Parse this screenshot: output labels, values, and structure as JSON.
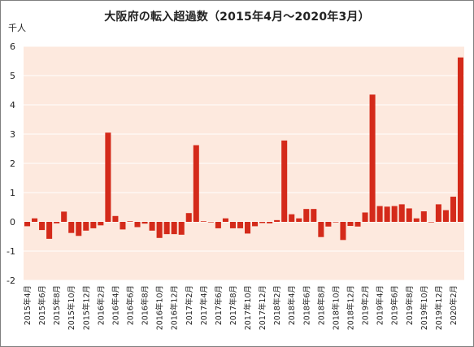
{
  "chart_data": {
    "type": "bar",
    "title": "大阪府の転入超過数（2015年4月～2020年3月）",
    "unit_label": "千人",
    "ylim": [
      -2,
      6
    ],
    "yticks": [
      -2,
      -1,
      0,
      1,
      2,
      3,
      4,
      5,
      6
    ],
    "grid": true,
    "colors": {
      "bar": "#d42a1a",
      "plot_bg": "#fde9de",
      "grid": "#ffffff"
    },
    "categories": [
      "2015年4月",
      "2015年5月",
      "2015年6月",
      "2015年7月",
      "2015年8月",
      "2015年9月",
      "2015年10月",
      "2015年11月",
      "2015年12月",
      "2016年1月",
      "2016年2月",
      "2016年3月",
      "2016年4月",
      "2016年5月",
      "2016年6月",
      "2016年7月",
      "2016年8月",
      "2016年9月",
      "2016年10月",
      "2016年11月",
      "2016年12月",
      "2017年1月",
      "2017年2月",
      "2017年3月",
      "2017年4月",
      "2017年5月",
      "2017年6月",
      "2017年7月",
      "2017年8月",
      "2017年9月",
      "2017年10月",
      "2017年11月",
      "2017年12月",
      "2018年1月",
      "2018年2月",
      "2018年3月",
      "2018年4月",
      "2018年5月",
      "2018年6月",
      "2018年7月",
      "2018年8月",
      "2018年9月",
      "2018年10月",
      "2018年11月",
      "2018年12月",
      "2019年1月",
      "2019年2月",
      "2019年3月",
      "2019年4月",
      "2019年5月",
      "2019年6月",
      "2019年7月",
      "2019年8月",
      "2019年9月",
      "2019年10月",
      "2019年11月",
      "2019年12月",
      "2020年1月",
      "2020年2月",
      "2020年3月"
    ],
    "x_tick_labels": [
      "2015年4月",
      "2015年6月",
      "2015年8月",
      "2015年10月",
      "2015年12月",
      "2016年2月",
      "2016年4月",
      "2016年6月",
      "2016年8月",
      "2016年10月",
      "2016年12月",
      "2017年2月",
      "2017年4月",
      "2017年6月",
      "2017年8月",
      "2017年10月",
      "2017年12月",
      "2018年2月",
      "2018年4月",
      "2018年6月",
      "2018年8月",
      "2018年10月",
      "2018年12月",
      "2019年2月",
      "2019年4月",
      "2019年6月",
      "2019年8月",
      "2019年10月",
      "2019年12月",
      "2020年2月"
    ],
    "values": [
      -0.15,
      0.12,
      -0.28,
      -0.58,
      -0.05,
      0.35,
      -0.38,
      -0.48,
      -0.3,
      -0.22,
      -0.12,
      3.05,
      0.2,
      -0.26,
      0.02,
      -0.18,
      -0.06,
      -0.3,
      -0.55,
      -0.42,
      -0.42,
      -0.44,
      0.3,
      2.62,
      0.02,
      0.0,
      -0.22,
      0.12,
      -0.22,
      -0.22,
      -0.4,
      -0.15,
      -0.04,
      -0.05,
      0.06,
      2.78,
      0.26,
      0.12,
      0.44,
      0.44,
      -0.52,
      -0.16,
      0.0,
      -0.62,
      -0.14,
      -0.16,
      0.32,
      4.35,
      0.54,
      0.52,
      0.54,
      0.6,
      0.46,
      0.12,
      0.36,
      0.0,
      0.6,
      0.4,
      0.86,
      5.62
    ]
  }
}
